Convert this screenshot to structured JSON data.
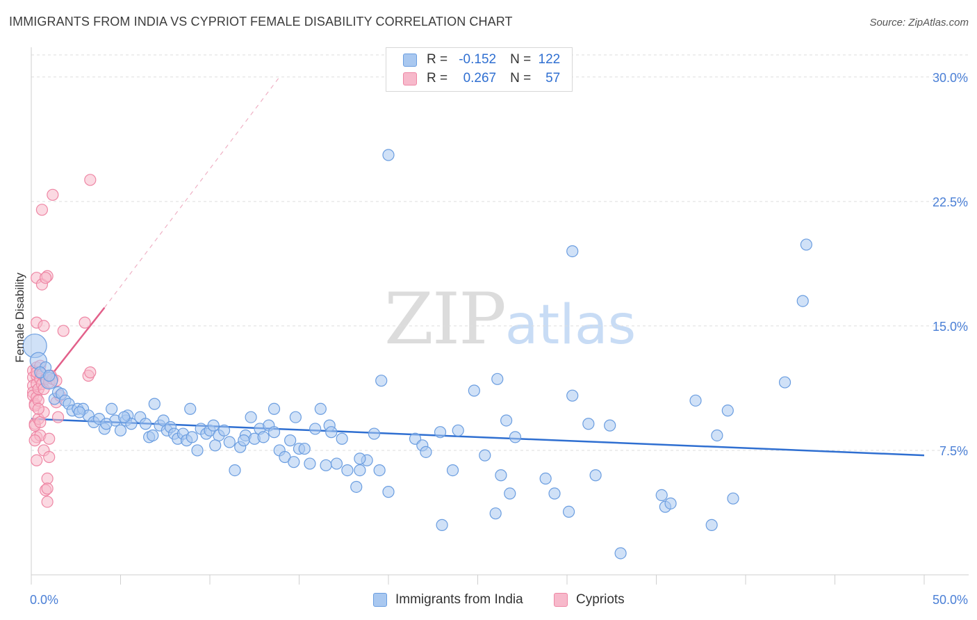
{
  "title": "IMMIGRANTS FROM INDIA VS CYPRIOT FEMALE DISABILITY CORRELATION CHART",
  "source": "Source: ZipAtlas.com",
  "watermark": {
    "zip": "ZIP",
    "atlas": "atlas"
  },
  "legend": {
    "rows": [
      {
        "r_label": "R =",
        "r_value": "-0.152",
        "n_label": "N =",
        "n_value": "122"
      },
      {
        "r_label": "R =",
        "r_value": "0.267",
        "n_label": "N =",
        "n_value": "57"
      }
    ]
  },
  "bottom_legend": [
    "Immigrants from India",
    "Cypriots"
  ],
  "colors": {
    "india_fill": "#a9c8f0",
    "india_stroke": "#6a9de0",
    "india_line": "#2f6fd1",
    "cypriot_fill": "#f7b9cb",
    "cypriot_stroke": "#ee86a4",
    "cypriot_line": "#e2608a",
    "grid": "#dedede",
    "tick_label": "#4a7fd6"
  },
  "chart_data": {
    "type": "scatter",
    "title": "IMMIGRANTS FROM INDIA VS CYPRIOT FEMALE DISABILITY CORRELATION CHART",
    "xlabel": "",
    "ylabel": "Female Disability",
    "xlim": [
      0,
      50
    ],
    "ylim": [
      0,
      31.5
    ],
    "x_tick_labels": [
      "0.0%",
      "50.0%"
    ],
    "y_ticks": [
      7.5,
      15.0,
      22.5,
      30.0
    ],
    "y_tick_labels": [
      "7.5%",
      "15.0%",
      "22.5%",
      "30.0%"
    ],
    "grid": true,
    "legend_position": "top-center",
    "series": [
      {
        "name": "Immigrants from India",
        "r": -0.152,
        "n": 122,
        "trend": {
          "x0": 0,
          "y0": 9.4,
          "x1": 50,
          "y1": 7.2
        },
        "points": [
          [
            0.2,
            13.8
          ],
          [
            0.4,
            12.9
          ],
          [
            0.8,
            12.5
          ],
          [
            1.0,
            11.7
          ],
          [
            1.3,
            10.6
          ],
          [
            1.5,
            11.0
          ],
          [
            1.7,
            10.9
          ],
          [
            1.9,
            10.5
          ],
          [
            2.1,
            10.3
          ],
          [
            2.3,
            9.9
          ],
          [
            2.6,
            10.0
          ],
          [
            2.9,
            10.0
          ],
          [
            3.2,
            9.6
          ],
          [
            3.5,
            9.2
          ],
          [
            3.8,
            9.4
          ],
          [
            4.1,
            8.8
          ],
          [
            4.5,
            10.0
          ],
          [
            4.7,
            9.3
          ],
          [
            5.0,
            8.7
          ],
          [
            5.3,
            9.3
          ],
          [
            5.4,
            9.6
          ],
          [
            5.6,
            9.1
          ],
          [
            6.1,
            9.5
          ],
          [
            6.4,
            9.1
          ],
          [
            6.6,
            8.3
          ],
          [
            6.8,
            8.4
          ],
          [
            7.2,
            9.0
          ],
          [
            7.4,
            9.3
          ],
          [
            7.6,
            8.7
          ],
          [
            7.8,
            8.9
          ],
          [
            8.0,
            8.5
          ],
          [
            8.2,
            8.2
          ],
          [
            8.5,
            8.5
          ],
          [
            8.7,
            8.1
          ],
          [
            9.0,
            8.3
          ],
          [
            9.3,
            7.5
          ],
          [
            9.5,
            8.8
          ],
          [
            9.8,
            8.5
          ],
          [
            10.0,
            8.7
          ],
          [
            10.2,
            9.0
          ],
          [
            10.5,
            8.4
          ],
          [
            10.8,
            8.7
          ],
          [
            11.1,
            8.0
          ],
          [
            11.4,
            6.3
          ],
          [
            11.7,
            7.7
          ],
          [
            12.0,
            8.4
          ],
          [
            12.3,
            9.5
          ],
          [
            12.5,
            8.2
          ],
          [
            12.8,
            8.8
          ],
          [
            13.0,
            8.3
          ],
          [
            13.3,
            9.0
          ],
          [
            13.6,
            8.6
          ],
          [
            13.9,
            7.5
          ],
          [
            14.2,
            7.1
          ],
          [
            14.5,
            8.1
          ],
          [
            14.7,
            6.8
          ],
          [
            15.0,
            7.6
          ],
          [
            15.3,
            7.6
          ],
          [
            15.6,
            6.7
          ],
          [
            15.9,
            8.8
          ],
          [
            16.2,
            10.0
          ],
          [
            16.5,
            6.6
          ],
          [
            16.7,
            9.0
          ],
          [
            17.1,
            6.7
          ],
          [
            17.4,
            8.2
          ],
          [
            17.7,
            6.3
          ],
          [
            18.2,
            5.3
          ],
          [
            18.4,
            6.3
          ],
          [
            18.8,
            6.9
          ],
          [
            19.2,
            8.5
          ],
          [
            19.5,
            6.3
          ],
          [
            19.6,
            11.7
          ],
          [
            20.0,
            5.0
          ],
          [
            21.5,
            8.2
          ],
          [
            21.9,
            7.8
          ],
          [
            22.1,
            7.4
          ],
          [
            22.9,
            8.6
          ],
          [
            23.0,
            3.0
          ],
          [
            23.6,
            6.3
          ],
          [
            23.9,
            8.7
          ],
          [
            24.8,
            11.1
          ],
          [
            25.4,
            7.2
          ],
          [
            26.0,
            3.7
          ],
          [
            26.1,
            11.8
          ],
          [
            26.3,
            6.0
          ],
          [
            26.6,
            9.3
          ],
          [
            26.8,
            4.9
          ],
          [
            27.1,
            8.3
          ],
          [
            28.8,
            5.8
          ],
          [
            29.3,
            4.9
          ],
          [
            30.1,
            3.8
          ],
          [
            30.3,
            10.8
          ],
          [
            30.3,
            19.5
          ],
          [
            31.2,
            9.1
          ],
          [
            31.6,
            6.0
          ],
          [
            32.4,
            9.0
          ],
          [
            33.0,
            1.3
          ],
          [
            35.3,
            4.8
          ],
          [
            35.5,
            4.1
          ],
          [
            35.8,
            4.3
          ],
          [
            37.2,
            10.5
          ],
          [
            38.1,
            3.0
          ],
          [
            38.4,
            8.4
          ],
          [
            39.0,
            9.9
          ],
          [
            39.3,
            4.6
          ],
          [
            42.2,
            11.6
          ],
          [
            43.2,
            16.5
          ],
          [
            20.0,
            25.3
          ],
          [
            43.4,
            19.9
          ],
          [
            0.5,
            12.2
          ],
          [
            1.0,
            12.0
          ],
          [
            2.7,
            9.8
          ],
          [
            4.2,
            9.1
          ],
          [
            5.2,
            9.5
          ],
          [
            6.9,
            10.3
          ],
          [
            8.9,
            10.0
          ],
          [
            10.3,
            7.8
          ],
          [
            11.9,
            8.1
          ],
          [
            13.6,
            10.0
          ],
          [
            14.8,
            9.5
          ],
          [
            16.8,
            8.6
          ],
          [
            18.4,
            7.0
          ]
        ],
        "point_sizes": {
          "large": [
            [
              0.2,
              13.8
            ]
          ],
          "medium": [
            [
              0.4,
              12.9
            ],
            [
              1.0,
              11.7
            ]
          ]
        }
      },
      {
        "name": "Cypriots",
        "r": 0.267,
        "n": 57,
        "trend": {
          "x0": 0,
          "y0": 10.5,
          "x1": 4.1,
          "y1": 16.1
        },
        "trend_dashed_to": {
          "x": 13.9,
          "y": 30.0
        },
        "points": [
          [
            0.1,
            12.3
          ],
          [
            0.1,
            11.9
          ],
          [
            0.1,
            11.4
          ],
          [
            0.1,
            11.0
          ],
          [
            0.1,
            10.8
          ],
          [
            0.2,
            10.3
          ],
          [
            0.2,
            10.2
          ],
          [
            0.2,
            9.1
          ],
          [
            0.2,
            9.0
          ],
          [
            0.3,
            12.5
          ],
          [
            0.3,
            12.0
          ],
          [
            0.3,
            11.5
          ],
          [
            0.3,
            10.7
          ],
          [
            0.3,
            8.3
          ],
          [
            0.3,
            6.9
          ],
          [
            0.3,
            15.2
          ],
          [
            0.3,
            17.9
          ],
          [
            0.3,
            12.2
          ],
          [
            0.4,
            11.2
          ],
          [
            0.4,
            10.5
          ],
          [
            0.4,
            9.4
          ],
          [
            0.5,
            12.6
          ],
          [
            0.5,
            11.8
          ],
          [
            0.5,
            8.4
          ],
          [
            0.5,
            9.2
          ],
          [
            0.6,
            22.0
          ],
          [
            0.6,
            17.5
          ],
          [
            0.6,
            11.5
          ],
          [
            0.6,
            12.1
          ],
          [
            0.7,
            15.0
          ],
          [
            0.7,
            11.2
          ],
          [
            0.7,
            9.8
          ],
          [
            0.7,
            7.5
          ],
          [
            0.8,
            11.8
          ],
          [
            0.8,
            5.1
          ],
          [
            0.9,
            18.0
          ],
          [
            0.9,
            5.8
          ],
          [
            0.9,
            5.2
          ],
          [
            0.9,
            4.4
          ],
          [
            1.0,
            11.6
          ],
          [
            1.0,
            8.2
          ],
          [
            1.0,
            7.1
          ],
          [
            1.1,
            12.0
          ],
          [
            1.2,
            11.8
          ],
          [
            1.4,
            10.4
          ],
          [
            1.5,
            9.5
          ],
          [
            1.2,
            22.9
          ],
          [
            1.8,
            14.7
          ],
          [
            3.0,
            15.2
          ],
          [
            3.2,
            12.0
          ],
          [
            3.3,
            12.2
          ],
          [
            3.3,
            23.8
          ],
          [
            0.8,
            17.9
          ],
          [
            1.4,
            11.7
          ],
          [
            1.6,
            10.8
          ],
          [
            0.4,
            10.0
          ],
          [
            0.2,
            8.1
          ]
        ]
      }
    ]
  }
}
